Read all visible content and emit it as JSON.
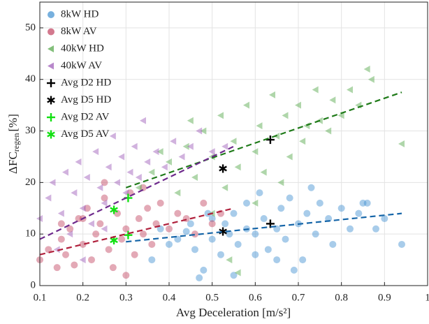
{
  "chart_data": {
    "type": "scatter",
    "x_label": "Avg Deceleration [m/s²]",
    "y_label": {
      "main": "ΔFC",
      "sub": "regen",
      "unit": "[%]"
    },
    "xlim": [
      0.1,
      1
    ],
    "ylim": [
      0,
      55
    ],
    "xticks": [
      0.1,
      0.2,
      0.3,
      0.4,
      0.5,
      0.6,
      0.7,
      0.8,
      0.9,
      1
    ],
    "yticks": [
      0,
      10,
      20,
      30,
      40,
      50
    ],
    "grid": true,
    "legend": "upper-left",
    "alpha": 0.45,
    "series": [
      {
        "name": "8kW HD",
        "color": "#3d8fd0",
        "marker": "circle",
        "trend_color": "#1565a8",
        "trend_x": [
          0.3,
          0.94
        ],
        "trend_y": [
          8.5,
          14
        ],
        "x": [
          0.46,
          0.47,
          0.48,
          0.5,
          0.52,
          0.53,
          0.55,
          0.56,
          0.58,
          0.6,
          0.61,
          0.62,
          0.63,
          0.65,
          0.66,
          0.67,
          0.68,
          0.7,
          0.71,
          0.72,
          0.74,
          0.75,
          0.77,
          0.78,
          0.8,
          0.82,
          0.84,
          0.86,
          0.88,
          0.94,
          0.42,
          0.44,
          0.4,
          0.38,
          0.36,
          0.55,
          0.5,
          0.58,
          0.65,
          0.69,
          0.73,
          0.6,
          0.45,
          0.49,
          0.54,
          0.85,
          0.9
        ],
        "values": [
          7,
          1.5,
          3,
          9,
          6,
          12,
          14,
          8,
          16,
          10,
          18,
          13,
          7,
          11,
          15,
          9,
          17,
          12,
          5,
          14,
          10,
          16,
          13,
          8,
          15,
          11,
          14,
          16,
          11,
          8,
          9,
          10.5,
          8,
          11,
          5,
          2,
          13,
          11,
          5,
          3,
          19,
          6,
          12,
          14,
          10,
          16,
          13
        ]
      },
      {
        "name": "8kW AV",
        "color": "#c0405e",
        "marker": "circle",
        "trend_color": "#b0203c",
        "trend_x": [
          0.1,
          0.55
        ],
        "trend_y": [
          6,
          15
        ],
        "x": [
          0.1,
          0.12,
          0.14,
          0.15,
          0.16,
          0.17,
          0.18,
          0.19,
          0.2,
          0.21,
          0.22,
          0.23,
          0.24,
          0.25,
          0.26,
          0.27,
          0.28,
          0.29,
          0.3,
          0.31,
          0.32,
          0.33,
          0.34,
          0.35,
          0.36,
          0.37,
          0.38,
          0.4,
          0.42,
          0.44,
          0.46,
          0.48,
          0.5,
          0.52,
          0.3,
          0.25,
          0.2,
          0.15,
          0.34
        ],
        "values": [
          5,
          7,
          3.5,
          9,
          6,
          11,
          4,
          13,
          8,
          15,
          5,
          10,
          12,
          17,
          7,
          3.5,
          14,
          9,
          11,
          18,
          6,
          13,
          10,
          15,
          8,
          12,
          16,
          11,
          14,
          13,
          10,
          16,
          12,
          14,
          2,
          20,
          13,
          12,
          19
        ]
      },
      {
        "name": "40kW HD",
        "color": "#4ea443",
        "marker": "triangle-left",
        "trend_color": "#1e7a18",
        "trend_x": [
          0.3,
          0.94
        ],
        "trend_y": [
          19,
          37.5
        ],
        "x": [
          0.33,
          0.36,
          0.4,
          0.42,
          0.44,
          0.46,
          0.48,
          0.5,
          0.52,
          0.53,
          0.55,
          0.56,
          0.58,
          0.6,
          0.61,
          0.62,
          0.64,
          0.65,
          0.67,
          0.68,
          0.7,
          0.71,
          0.72,
          0.74,
          0.75,
          0.77,
          0.78,
          0.8,
          0.82,
          0.84,
          0.86,
          0.87,
          0.94,
          0.54,
          0.56,
          0.5,
          0.45,
          0.38,
          0.6,
          0.66
        ],
        "values": [
          19,
          22,
          24,
          18,
          27,
          21,
          30,
          25,
          33,
          19,
          28,
          23,
          35,
          26,
          31,
          22,
          37,
          29,
          33,
          25,
          35,
          28,
          31,
          38,
          32,
          30,
          36,
          33,
          38,
          35,
          42,
          40,
          27.5,
          5,
          2.5,
          14,
          32,
          26,
          16,
          20
        ]
      },
      {
        "name": "40kW AV",
        "color": "#9a55b5",
        "marker": "triangle-left",
        "trend_color": "#6e2a8c",
        "trend_x": [
          0.1,
          0.55
        ],
        "trend_y": [
          9,
          27
        ],
        "x": [
          0.1,
          0.12,
          0.13,
          0.15,
          0.16,
          0.17,
          0.18,
          0.19,
          0.2,
          0.21,
          0.22,
          0.23,
          0.24,
          0.25,
          0.26,
          0.27,
          0.28,
          0.29,
          0.3,
          0.31,
          0.32,
          0.33,
          0.35,
          0.37,
          0.39,
          0.41,
          0.43,
          0.45,
          0.47,
          0.5,
          0.53,
          0.14,
          0.2,
          0.34,
          0.25
        ],
        "values": [
          13,
          17,
          20,
          14,
          22,
          10,
          18,
          24,
          15,
          21,
          12,
          26,
          19,
          16,
          23,
          29,
          20,
          25,
          18,
          22,
          27,
          21,
          24,
          26,
          23,
          28,
          25,
          27,
          30,
          26,
          27,
          7,
          5,
          32,
          11
        ]
      },
      {
        "name": "Avg D2 HD",
        "color": "#000000",
        "marker": "plus",
        "x": [
          0.635,
          0.635
        ],
        "values": [
          12,
          28.3
        ]
      },
      {
        "name": "Avg D5 HD",
        "color": "#000000",
        "marker": "asterisk",
        "x": [
          0.525,
          0.525
        ],
        "values": [
          10.5,
          22.7
        ]
      },
      {
        "name": "Avg D2 AV",
        "color": "#11e011",
        "marker": "plus",
        "x": [
          0.305,
          0.305
        ],
        "values": [
          9.8,
          17
        ]
      },
      {
        "name": "Avg D5 AV",
        "color": "#11e011",
        "marker": "asterisk",
        "x": [
          0.272,
          0.272
        ],
        "values": [
          8.8,
          14.7
        ]
      }
    ]
  }
}
